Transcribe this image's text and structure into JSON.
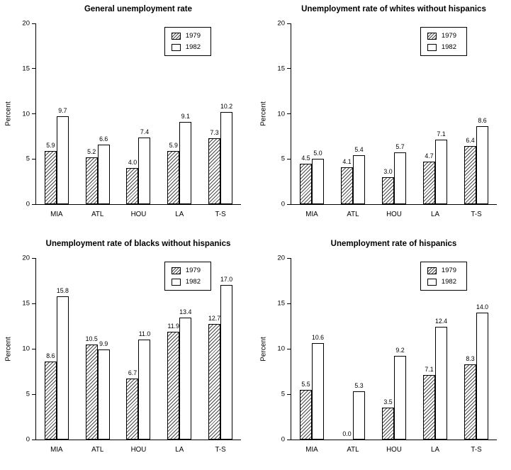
{
  "figure": {
    "background": "#ffffff",
    "colors": {
      "bar_fill_1982": "#ffffff",
      "bar_border": "#000000",
      "hatch_1979": "#4a4a4a",
      "text": "#000000"
    }
  },
  "chart_data": [
    {
      "type": "bar",
      "title": "General unemployment rate",
      "ylabel": "Percent",
      "ylim": [
        0,
        20
      ],
      "yticks": [
        0,
        5,
        10,
        15,
        20
      ],
      "grid": false,
      "legend_position": "top-right-inside",
      "categories": [
        "MIA",
        "ATL",
        "HOU",
        "LA",
        "T-S"
      ],
      "series": [
        {
          "name": "1979",
          "style": "hatched",
          "values": [
            5.9,
            5.2,
            4.0,
            5.9,
            7.3
          ]
        },
        {
          "name": "1982",
          "style": "plain",
          "values": [
            9.7,
            6.6,
            7.4,
            9.1,
            10.2
          ]
        }
      ]
    },
    {
      "type": "bar",
      "title": "Unemployment rate of whites without hispanics",
      "ylabel": "Percent",
      "ylim": [
        0,
        20
      ],
      "yticks": [
        0,
        5,
        10,
        15,
        20
      ],
      "grid": false,
      "legend_position": "top-right-inside",
      "categories": [
        "MIA",
        "ATL",
        "HOU",
        "LA",
        "T-S"
      ],
      "series": [
        {
          "name": "1979",
          "style": "hatched",
          "values": [
            4.5,
            4.1,
            3.0,
            4.7,
            6.4
          ]
        },
        {
          "name": "1982",
          "style": "plain",
          "values": [
            5.0,
            5.4,
            5.7,
            7.1,
            8.6
          ]
        }
      ]
    },
    {
      "type": "bar",
      "title": "Unemployment rate of blacks  without hispanics",
      "ylabel": "Percent",
      "ylim": [
        0,
        20
      ],
      "yticks": [
        0,
        5,
        10,
        15,
        20
      ],
      "grid": false,
      "legend_position": "top-right-inside",
      "categories": [
        "MIA",
        "ATL",
        "HOU",
        "LA",
        "T-S"
      ],
      "series": [
        {
          "name": "1979",
          "style": "hatched",
          "values": [
            8.6,
            10.5,
            6.7,
            11.9,
            12.7
          ]
        },
        {
          "name": "1982",
          "style": "plain",
          "values": [
            15.8,
            9.9,
            11.0,
            13.4,
            17.0
          ]
        }
      ]
    },
    {
      "type": "bar",
      "title": "Unemployment rate of hispanics",
      "ylabel": "Percent",
      "ylim": [
        0,
        20
      ],
      "yticks": [
        0,
        5,
        10,
        15,
        20
      ],
      "grid": false,
      "legend_position": "top-right-inside",
      "categories": [
        "MIA",
        "ATL",
        "HOU",
        "LA",
        "T-S"
      ],
      "series": [
        {
          "name": "1979",
          "style": "hatched",
          "values": [
            5.5,
            0.0,
            3.5,
            7.1,
            8.3
          ]
        },
        {
          "name": "1982",
          "style": "plain",
          "values": [
            10.6,
            5.3,
            9.2,
            12.4,
            14.0
          ]
        }
      ]
    }
  ]
}
